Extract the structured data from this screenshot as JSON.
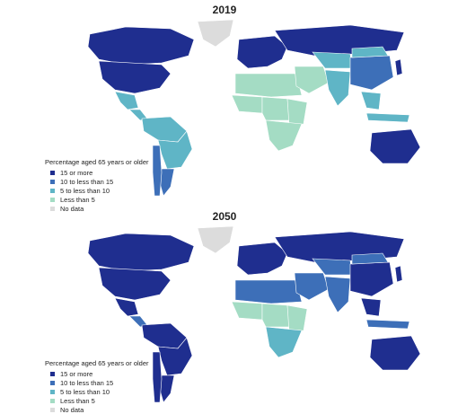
{
  "colors": {
    "c15": "#1f2e8f",
    "c10": "#3d6fb8",
    "c5": "#5fb5c6",
    "c0": "#a4dcc4",
    "nodata": "#dcdcdc"
  },
  "legend": {
    "title": "Percentage aged 65 years or older",
    "items": [
      {
        "label": "15 or more",
        "color": "#1f2e8f"
      },
      {
        "label": "10 to less than 15",
        "color": "#3d6fb8"
      },
      {
        "label": "5 to less than 10",
        "color": "#5fb5c6"
      },
      {
        "label": "Less than 5",
        "color": "#a4dcc4"
      },
      {
        "label": "No data",
        "color": "#dcdcdc"
      }
    ]
  },
  "maps": [
    {
      "year": "2019",
      "regions": {
        "greenland": "nodata",
        "canada": "c15",
        "usa": "c15",
        "mexico": "c5",
        "central_america": "c5",
        "south_america_north": "c5",
        "brazil": "c5",
        "argentina": "c10",
        "chile": "c10",
        "europe": "c15",
        "russia": "c15",
        "north_africa": "c0",
        "west_africa": "c0",
        "central_africa": "c0",
        "east_africa": "c0",
        "southern_africa": "c0",
        "middle_east": "c0",
        "central_asia": "c5",
        "south_asia": "c5",
        "china": "c10",
        "mongolia": "c5",
        "japan": "c15",
        "se_asia": "c5",
        "indonesia": "c5",
        "australia": "c15"
      }
    },
    {
      "year": "2050",
      "regions": {
        "greenland": "nodata",
        "canada": "c15",
        "usa": "c15",
        "mexico": "c15",
        "central_america": "c10",
        "south_america_north": "c15",
        "brazil": "c15",
        "argentina": "c15",
        "chile": "c15",
        "europe": "c15",
        "russia": "c15",
        "north_africa": "c10",
        "west_africa": "c0",
        "central_africa": "c0",
        "east_africa": "c0",
        "southern_africa": "c5",
        "middle_east": "c10",
        "central_asia": "c10",
        "south_asia": "c10",
        "china": "c15",
        "mongolia": "c10",
        "japan": "c15",
        "se_asia": "c15",
        "indonesia": "c10",
        "australia": "c15"
      }
    }
  ]
}
